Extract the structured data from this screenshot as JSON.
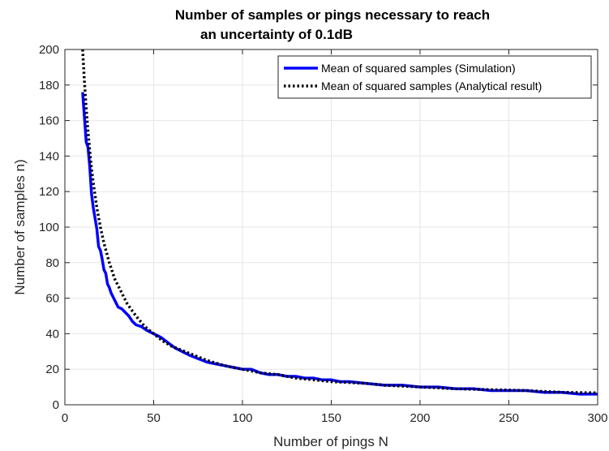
{
  "chart_data": {
    "type": "line",
    "title": [
      "Number of samples or pings necessary to reach",
      "an uncertainty of 0.1dB"
    ],
    "xlabel": "Number of pings N",
    "ylabel": "Number of samples n)",
    "xlim": [
      0,
      300
    ],
    "ylim": [
      0,
      200
    ],
    "xticks": [
      0,
      50,
      100,
      150,
      200,
      250,
      300
    ],
    "yticks": [
      0,
      20,
      40,
      60,
      80,
      100,
      120,
      140,
      160,
      180,
      200
    ],
    "grid": true,
    "legend_position": "top-right",
    "series": [
      {
        "name": "Mean of squared samples (Simulation)",
        "color": "#0000ff",
        "style": "solid",
        "x": [
          10,
          11,
          12,
          13,
          14,
          15,
          16,
          17,
          18,
          19,
          20,
          21,
          22,
          23,
          24,
          25,
          26,
          27,
          28,
          29,
          30,
          32,
          34,
          36,
          38,
          40,
          43,
          46,
          50,
          54,
          58,
          62,
          66,
          70,
          75,
          80,
          85,
          90,
          95,
          100,
          105,
          110,
          115,
          120,
          125,
          130,
          135,
          140,
          145,
          150,
          155,
          160,
          170,
          180,
          190,
          200,
          210,
          220,
          230,
          240,
          250,
          260,
          270,
          280,
          290,
          300
        ],
        "y": [
          176,
          162,
          148,
          145,
          134,
          119,
          111,
          105,
          99,
          89,
          87,
          82,
          76,
          74,
          68,
          66,
          63,
          61,
          59,
          57,
          55,
          54,
          52,
          50,
          47,
          45,
          44,
          42,
          40,
          38,
          35,
          32,
          30,
          28,
          26,
          24,
          23,
          22,
          21,
          20,
          20,
          18,
          17,
          17,
          16,
          16,
          15,
          15,
          14,
          14,
          13,
          13,
          12,
          11,
          11,
          10,
          10,
          9,
          9,
          8,
          8,
          8,
          7,
          7,
          6,
          6
        ]
      },
      {
        "name": "Mean of squared samples (Analytical result)",
        "color": "#000000",
        "style": "dotted",
        "x": [
          10,
          11,
          12,
          13,
          14,
          15,
          16,
          18,
          20,
          22,
          25,
          28,
          31,
          35,
          40,
          45,
          50,
          55,
          60,
          70,
          80,
          90,
          100,
          110,
          120,
          130,
          140,
          150,
          160,
          170,
          180,
          190,
          200,
          220,
          240,
          260,
          280,
          300
        ],
        "y": [
          200,
          182,
          167,
          154,
          143,
          133,
          125,
          111,
          100,
          91,
          80,
          71,
          65,
          57,
          50,
          44,
          40,
          36,
          33,
          29,
          25,
          22,
          20,
          18,
          17,
          15,
          14,
          13,
          12.5,
          12,
          11,
          10.5,
          10,
          9,
          8.5,
          8,
          7,
          6.7
        ]
      }
    ]
  }
}
